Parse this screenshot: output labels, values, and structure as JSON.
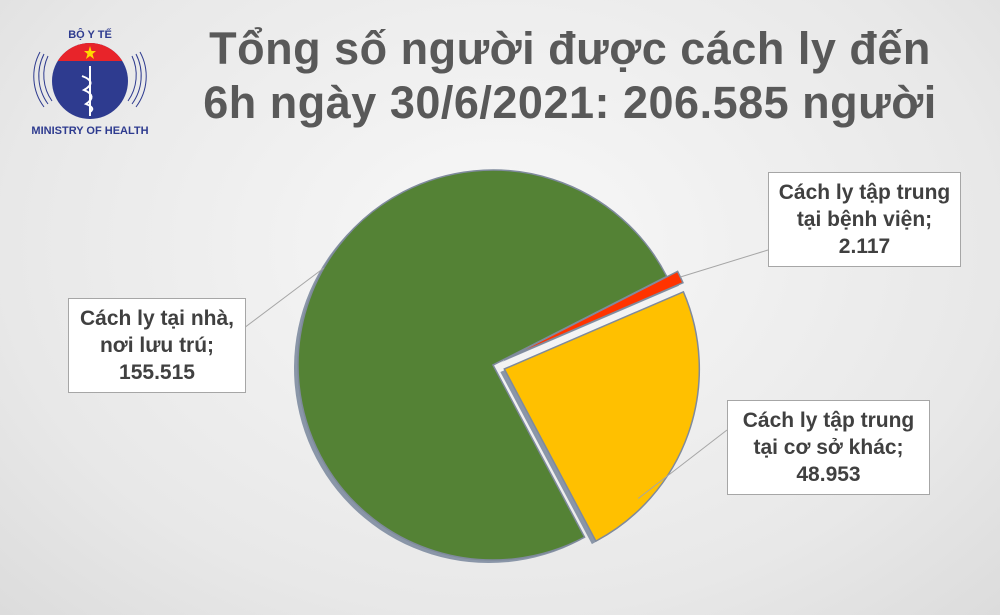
{
  "logo": {
    "top_text": "BỘ Y TẾ",
    "bottom_text": "MINISTRY OF HEALTH"
  },
  "chart_data": {
    "type": "pie",
    "title_lines": [
      "Tổng số người được cách ly đến",
      "6h ngày 30/6/2021: 206.585 người"
    ],
    "slices": [
      {
        "label_lines": [
          "Cách ly tập trung",
          "tại bệnh viện;"
        ],
        "value_label": "2.117",
        "value": 2117,
        "color": "#ff3300"
      },
      {
        "label_lines": [
          "Cách ly tập trung",
          "tại cơ sở khác;"
        ],
        "value_label": "48.953",
        "value": 48953,
        "color": "#ffc000"
      },
      {
        "label_lines": [
          "Cách ly tại nhà,",
          "nơi lưu trú;"
        ],
        "value_label": "155.515",
        "value": 155515,
        "color": "#548235"
      }
    ]
  }
}
